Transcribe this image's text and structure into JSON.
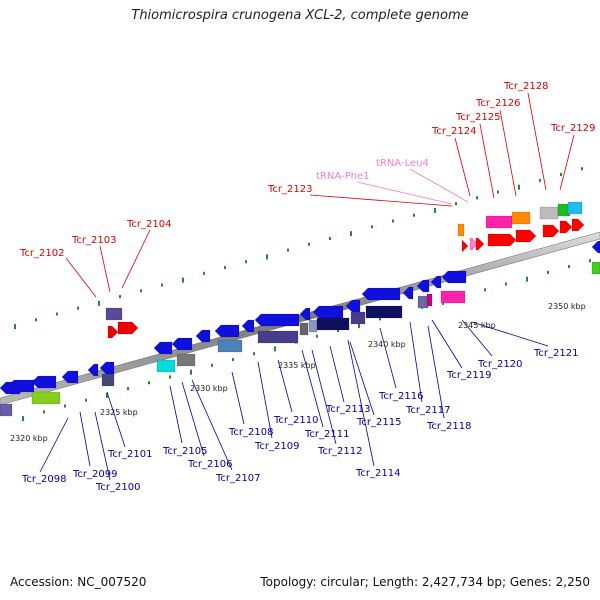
{
  "title": "Thiomicrospira crunogena XCL-2, complete genome",
  "footer": {
    "accession": "Accession: NC_007520",
    "summary": "Topology: circular; Length: 2,427,734 bp; Genes: 2,250"
  },
  "ticks": [
    "2320 kbp",
    "2325 kbp",
    "2330 kbp",
    "2335 kbp",
    "2340 kbp",
    "2345 kbp",
    "2350 kbp"
  ],
  "top_labels": [
    {
      "text": "Tcr_2102",
      "color": "#e00000"
    },
    {
      "text": "Tcr_2103",
      "color": "#e00000"
    },
    {
      "text": "Tcr_2104",
      "color": "#e00000"
    },
    {
      "text": "Tcr_2123",
      "color": "#e00000"
    },
    {
      "text": "tRNA-Phe1",
      "color": "#f080c8"
    },
    {
      "text": "tRNA-Leu4",
      "color": "#f080c8"
    },
    {
      "text": "Tcr_2124",
      "color": "#e00000"
    },
    {
      "text": "Tcr_2125",
      "color": "#e00000"
    },
    {
      "text": "Tcr_2126",
      "color": "#e00000"
    },
    {
      "text": "Tcr_2128",
      "color": "#e00000"
    },
    {
      "text": "Tcr_2129",
      "color": "#e00000"
    }
  ],
  "bottom_labels": [
    {
      "text": "Tcr_2098"
    },
    {
      "text": "Tcr_2099"
    },
    {
      "text": "Tcr_2100"
    },
    {
      "text": "Tcr_2101"
    },
    {
      "text": "Tcr_2105"
    },
    {
      "text": "Tcr_2106"
    },
    {
      "text": "Tcr_2107"
    },
    {
      "text": "Tcr_2108"
    },
    {
      "text": "Tcr_2109"
    },
    {
      "text": "Tcr_2110"
    },
    {
      "text": "Tcr_2111"
    },
    {
      "text": "Tcr_2112"
    },
    {
      "text": "Tcr_2113"
    },
    {
      "text": "Tcr_2114"
    },
    {
      "text": "Tcr_2115"
    },
    {
      "text": "Tcr_2116"
    },
    {
      "text": "Tcr_2117"
    },
    {
      "text": "Tcr_2118"
    },
    {
      "text": "Tcr_2119"
    },
    {
      "text": "Tcr_2120"
    },
    {
      "text": "Tcr_2121"
    }
  ],
  "colors": {
    "forward": "#ff0000",
    "reverse": "#0000ee",
    "trna": "#ff7fd0",
    "backbone": "#888888",
    "tickmark": "#2a8a2a",
    "label_reverse": "#0000aa"
  }
}
